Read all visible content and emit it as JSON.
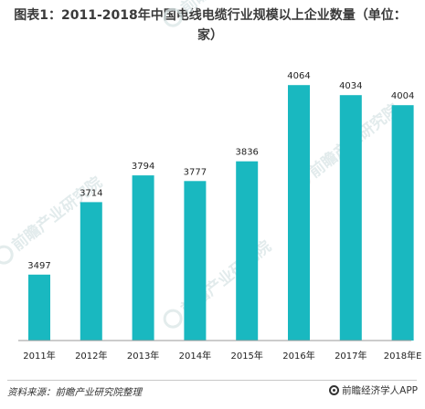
{
  "chart_data": {
    "type": "bar",
    "title": "图表1：2011-2018年中国电线电缆行业规模以上企业数量（单位：家）",
    "categories": [
      "2011年",
      "2012年",
      "2013年",
      "2014年",
      "2015年",
      "2016年",
      "2017年",
      "2018年E"
    ],
    "values": [
      3497,
      3714,
      3794,
      3777,
      3836,
      4064,
      4034,
      4004
    ],
    "ylim": [
      3300,
      4100
    ],
    "grid": false,
    "bar_color": "#19b8c0"
  },
  "watermark": {
    "text": "前瞻产业研究院",
    "color": "#d9e5e6"
  },
  "footer": {
    "source": "资料来源：前瞻产业研究院整理",
    "brand": "前瞻经济学人APP",
    "brand_icon": "qianzhan-logo-icon"
  }
}
